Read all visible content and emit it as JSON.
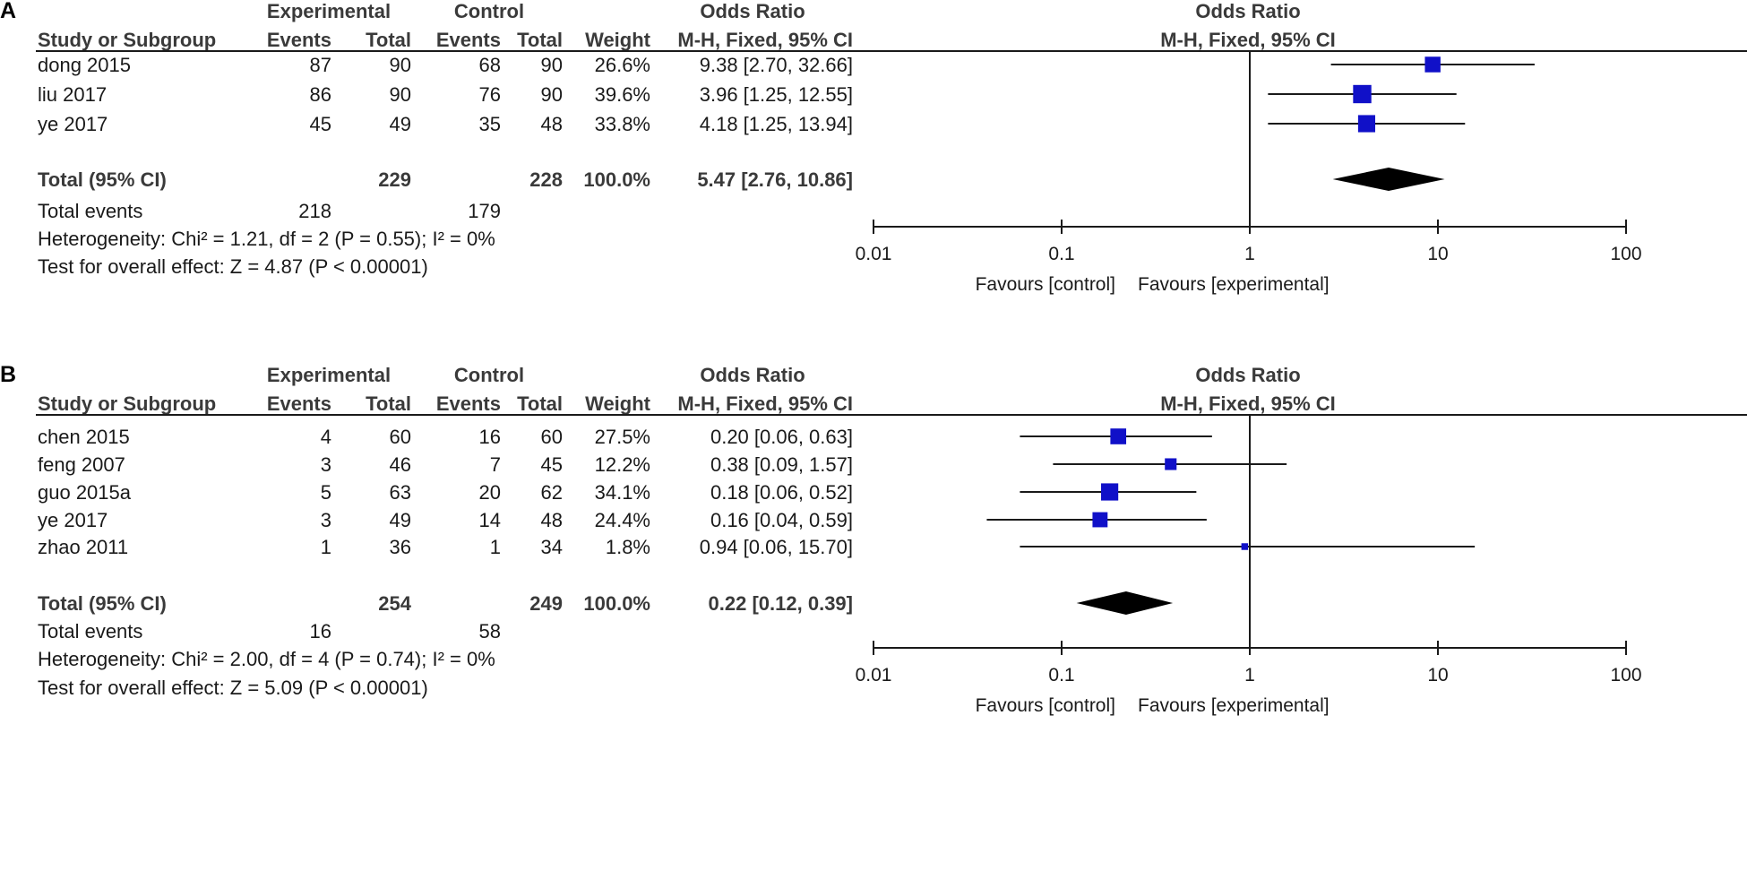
{
  "columns": {
    "study": "Study or Subgroup",
    "experimental": "Experimental",
    "control": "Control",
    "events": "Events",
    "total": "Total",
    "weight": "Weight",
    "odds_ratio": "Odds Ratio",
    "method": "M-H, Fixed, 95% CI"
  },
  "colors": {
    "marker": "#1010c8",
    "line": "#1a1a1a",
    "diamond": "#000000"
  },
  "chart_data": [
    {
      "type": "forest",
      "panel_label": "A",
      "scale": "log",
      "xlim": [
        0.01,
        100
      ],
      "ticks": [
        0.01,
        0.1,
        1,
        10,
        100
      ],
      "tick_labels": [
        "0.01",
        "0.1",
        "1",
        "10",
        "100"
      ],
      "favours_left": "Favours [control]",
      "favours_right": "Favours [experimental]",
      "studies": [
        {
          "name": "dong 2015",
          "e_events": "87",
          "e_total": "90",
          "c_events": "68",
          "c_total": "90",
          "weight": "26.6%",
          "ci_text": "9.38 [2.70, 32.66]",
          "or": 9.38,
          "lo": 2.7,
          "hi": 32.66,
          "w": 26.6
        },
        {
          "name": "liu 2017",
          "e_events": "86",
          "e_total": "90",
          "c_events": "76",
          "c_total": "90",
          "weight": "39.6%",
          "ci_text": "3.96 [1.25, 12.55]",
          "or": 3.96,
          "lo": 1.25,
          "hi": 12.55,
          "w": 39.6
        },
        {
          "name": "ye 2017",
          "e_events": "45",
          "e_total": "49",
          "c_events": "35",
          "c_total": "48",
          "weight": "33.8%",
          "ci_text": "4.18 [1.25, 13.94]",
          "or": 4.18,
          "lo": 1.25,
          "hi": 13.94,
          "w": 33.8
        }
      ],
      "total": {
        "label": "Total (95% CI)",
        "e_total": "229",
        "c_total": "228",
        "weight": "100.0%",
        "ci_text": "5.47 [2.76, 10.86]",
        "or": 5.47,
        "lo": 2.76,
        "hi": 10.86
      },
      "total_events": {
        "label": "Total events",
        "e": "218",
        "c": "179"
      },
      "heterogeneity": "Heterogeneity: Chi² = 1.21, df = 2 (P = 0.55); I² = 0%",
      "overall_effect": "Test for overall effect: Z = 4.87 (P < 0.00001)"
    },
    {
      "type": "forest",
      "panel_label": "B",
      "scale": "log",
      "xlim": [
        0.01,
        100
      ],
      "ticks": [
        0.01,
        0.1,
        1,
        10,
        100
      ],
      "tick_labels": [
        "0.01",
        "0.1",
        "1",
        "10",
        "100"
      ],
      "favours_left": "Favours [control]",
      "favours_right": "Favours [experimental]",
      "studies": [
        {
          "name": "chen 2015",
          "e_events": "4",
          "e_total": "60",
          "c_events": "16",
          "c_total": "60",
          "weight": "27.5%",
          "ci_text": "0.20 [0.06, 0.63]",
          "or": 0.2,
          "lo": 0.06,
          "hi": 0.63,
          "w": 27.5
        },
        {
          "name": "feng 2007",
          "e_events": "3",
          "e_total": "46",
          "c_events": "7",
          "c_total": "45",
          "weight": "12.2%",
          "ci_text": "0.38 [0.09, 1.57]",
          "or": 0.38,
          "lo": 0.09,
          "hi": 1.57,
          "w": 12.2
        },
        {
          "name": "guo 2015a",
          "e_events": "5",
          "e_total": "63",
          "c_events": "20",
          "c_total": "62",
          "weight": "34.1%",
          "ci_text": "0.18 [0.06, 0.52]",
          "or": 0.18,
          "lo": 0.06,
          "hi": 0.52,
          "w": 34.1
        },
        {
          "name": "ye 2017",
          "e_events": "3",
          "e_total": "49",
          "c_events": "14",
          "c_total": "48",
          "weight": "24.4%",
          "ci_text": "0.16 [0.04, 0.59]",
          "or": 0.16,
          "lo": 0.04,
          "hi": 0.59,
          "w": 24.4
        },
        {
          "name": "zhao 2011",
          "e_events": "1",
          "e_total": "36",
          "c_events": "1",
          "c_total": "34",
          "weight": "1.8%",
          "ci_text": "0.94 [0.06, 15.70]",
          "or": 0.94,
          "lo": 0.06,
          "hi": 15.7,
          "w": 1.8
        }
      ],
      "total": {
        "label": "Total (95% CI)",
        "e_total": "254",
        "c_total": "249",
        "weight": "100.0%",
        "ci_text": "0.22 [0.12, 0.39]",
        "or": 0.22,
        "lo": 0.12,
        "hi": 0.39
      },
      "total_events": {
        "label": "Total events",
        "e": "16",
        "c": "58"
      },
      "heterogeneity": "Heterogeneity: Chi² = 2.00, df = 4 (P = 0.74); I² = 0%",
      "overall_effect": "Test for overall effect: Z = 5.09 (P < 0.00001)"
    }
  ]
}
